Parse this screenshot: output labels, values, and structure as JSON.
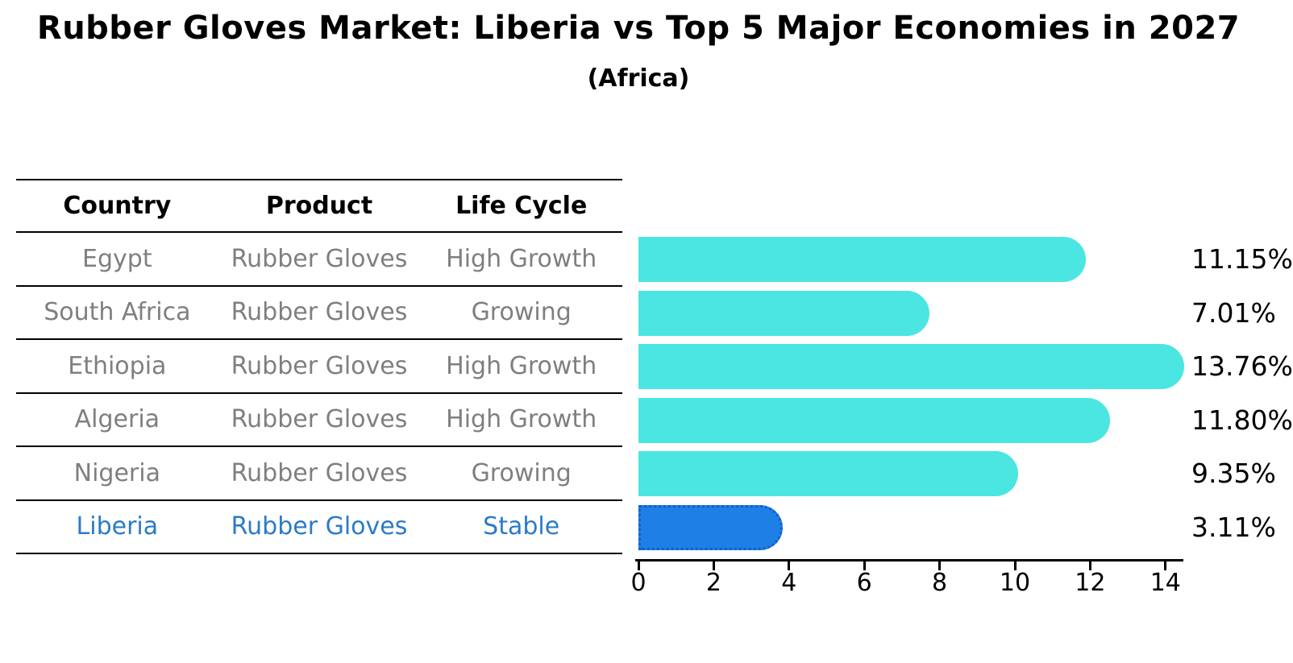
{
  "title": "Rubber Gloves Market: Liberia vs Top 5 Major Economies in 2027",
  "subtitle": "(Africa)",
  "table": {
    "columns": [
      "Country",
      "Product",
      "Life Cycle"
    ],
    "rows": [
      {
        "country": "Egypt",
        "product": "Rubber Gloves",
        "life_cycle": "High Growth",
        "highlighted": false
      },
      {
        "country": "South Africa",
        "product": "Rubber Gloves",
        "life_cycle": "Growing",
        "highlighted": false
      },
      {
        "country": "Ethiopia",
        "product": "Rubber Gloves",
        "life_cycle": "High Growth",
        "highlighted": false
      },
      {
        "country": "Algeria",
        "product": "Rubber Gloves",
        "life_cycle": "High Growth",
        "highlighted": false
      },
      {
        "country": "Nigeria",
        "product": "Rubber Gloves",
        "life_cycle": "Growing",
        "highlighted": false
      },
      {
        "country": "Liberia",
        "product": "Rubber Gloves",
        "life_cycle": "Stable",
        "highlighted": true
      }
    ]
  },
  "chart_data": {
    "type": "bar",
    "orientation": "horizontal",
    "title": "Rubber Gloves Market: Liberia vs Top 5 Major Economies in 2027",
    "subtitle": "(Africa)",
    "categories": [
      "Egypt",
      "South Africa",
      "Ethiopia",
      "Algeria",
      "Nigeria",
      "Liberia"
    ],
    "values": [
      11.15,
      7.01,
      13.76,
      11.8,
      9.35,
      3.11
    ],
    "value_labels": [
      "11.15%",
      "7.01%",
      "13.76%",
      "11.80%",
      "9.35%",
      "3.11%"
    ],
    "xlabel": "",
    "ylabel": "",
    "xlim": [
      0,
      14.5
    ],
    "xticks": [
      0,
      2,
      4,
      6,
      8,
      10,
      12,
      14
    ],
    "xtick_labels": [
      "0",
      "2",
      "4",
      "6",
      "8",
      "10",
      "12",
      "14"
    ],
    "grid": false,
    "legend": false,
    "highlight_index": 5,
    "bar_color": "#4be6e1",
    "highlight_bar_color": "#1e7fe6",
    "highlight_border_color": "#1260c4"
  },
  "colors": {
    "background": "#ffffff",
    "table_text": "#7f7f7f",
    "header_text": "#000000",
    "highlight_text": "#2b7bc7",
    "axis": "#000000",
    "bar": "#4be6e1",
    "highlight_bar": "#1e7fe6"
  }
}
